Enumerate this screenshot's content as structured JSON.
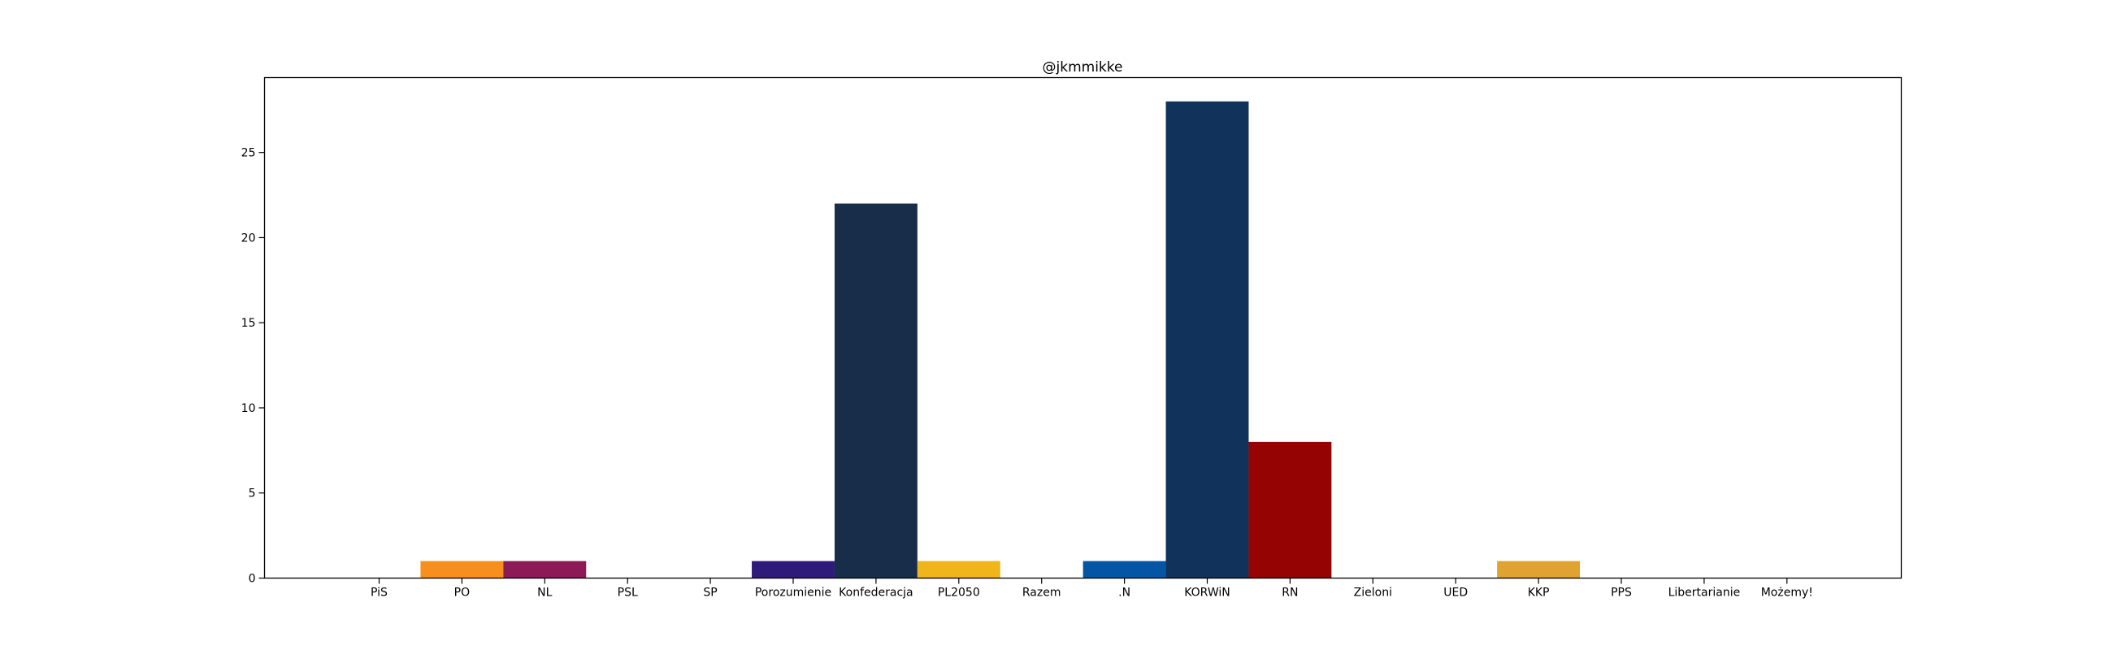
{
  "chart_data": {
    "type": "bar",
    "title": "@jkmmikke",
    "xlabel": "",
    "ylabel": "",
    "categories": [
      "PiS",
      "PO",
      "NL",
      "PSL",
      "SP",
      "Porozumienie",
      "Konfederacja",
      "PL2050",
      "Razem",
      ".N",
      "KORWiN",
      "RN",
      "Zieloni",
      "UED",
      "KKP",
      "PPS",
      "Libertarianie",
      "Możemy!"
    ],
    "values": [
      0,
      1,
      1,
      0,
      0,
      1,
      22,
      1,
      0,
      1,
      28,
      8,
      0,
      0,
      1,
      0,
      0,
      0
    ],
    "colors": [
      "#263778",
      "#f68f1e",
      "#8b1a56",
      "#1fa64a",
      "#2c5aa0",
      "#2e1a79",
      "#172d4a",
      "#f1b51c",
      "#870f57",
      "#0455a4",
      "#11325a",
      "#950303",
      "#5ba33b",
      "#f5c400",
      "#e0a230",
      "#d4021c",
      "#f2c40f",
      "#6f3e91"
    ],
    "yticks": [
      0,
      5,
      10,
      15,
      20,
      25
    ],
    "ylim": [
      0,
      29.4
    ],
    "grid": false,
    "legend": "none"
  }
}
